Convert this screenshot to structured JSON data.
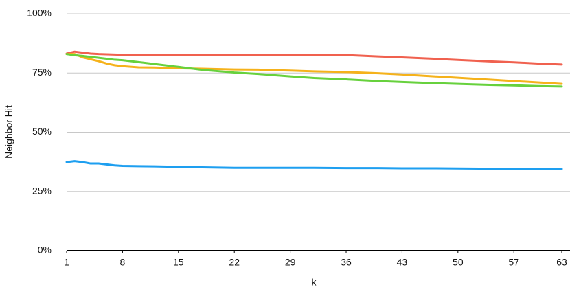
{
  "chart_data": {
    "type": "line",
    "y_label": "Neighbor Hit",
    "x_label": "k",
    "x": [
      1,
      2,
      3,
      4,
      5,
      6,
      7,
      8,
      10,
      12,
      15,
      18,
      22,
      25,
      29,
      32,
      36,
      40,
      43,
      47,
      50,
      54,
      57,
      60,
      63
    ],
    "series": [
      {
        "color": "#f0614f",
        "values": [
          83.2,
          84,
          83.6,
          83.2,
          83,
          82.9,
          82.8,
          82.7,
          82.7,
          82.6,
          82.6,
          82.7,
          82.7,
          82.6,
          82.6,
          82.6,
          82.6,
          82.0,
          81.6,
          81.0,
          80.5,
          79.9,
          79.5,
          79.0,
          78.6
        ]
      },
      {
        "color": "#f5b21b",
        "values": [
          83,
          83,
          81.6,
          80.8,
          80,
          79,
          78.3,
          77.9,
          77.4,
          77.3,
          77,
          76.8,
          76.5,
          76.4,
          76,
          75.7,
          75.4,
          74.9,
          74.4,
          73.6,
          73,
          72.2,
          71.6,
          71,
          70.4
        ]
      },
      {
        "color": "#67d13d",
        "values": [
          83,
          82.5,
          82.2,
          81.8,
          81.4,
          81,
          80.6,
          80.4,
          79.6,
          78.8,
          77.6,
          76.3,
          75.2,
          74.6,
          73.6,
          72.9,
          72.3,
          71.6,
          71.2,
          70.7,
          70.4,
          70,
          69.8,
          69.5,
          69.3
        ]
      },
      {
        "color": "#1e9ff0",
        "values": [
          37.4,
          37.8,
          37.4,
          36.8,
          36.8,
          36.4,
          36,
          35.8,
          35.7,
          35.6,
          35.4,
          35.2,
          35,
          35,
          35,
          35,
          34.9,
          34.9,
          34.8,
          34.8,
          34.7,
          34.6,
          34.6,
          34.5,
          34.5
        ]
      }
    ],
    "xlim": [
      1,
      63
    ],
    "xticks": [
      1,
      8,
      15,
      22,
      29,
      36,
      43,
      50,
      57,
      63
    ],
    "ylim": [
      0,
      100
    ],
    "yticks": [
      {
        "value": 0,
        "label": "0%"
      },
      {
        "value": 25,
        "label": "25%"
      },
      {
        "value": 50,
        "label": "50%"
      },
      {
        "value": 75,
        "label": "75%"
      },
      {
        "value": 100,
        "label": "100%"
      }
    ],
    "grid": true
  }
}
